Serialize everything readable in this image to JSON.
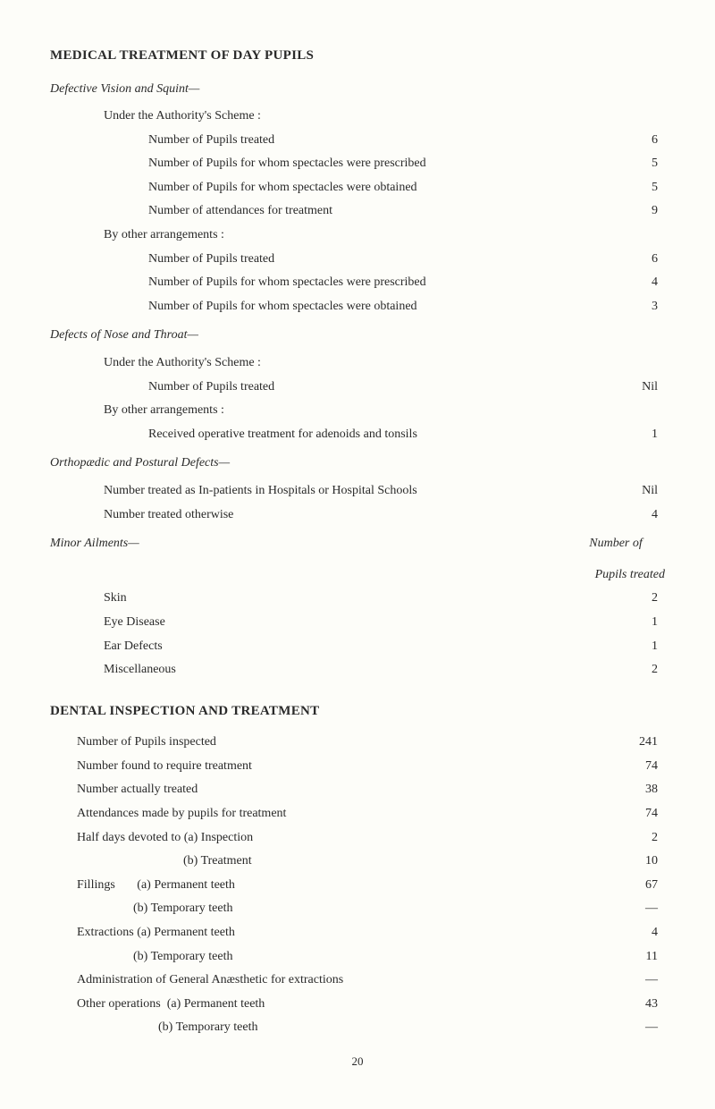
{
  "title_medical": "MEDICAL TREATMENT OF DAY PUPILS",
  "defective_vision": {
    "heading": "Defective Vision and Squint—",
    "under_scheme": "Under the Authority's Scheme :",
    "rows_scheme": [
      {
        "label": "Number of Pupils treated",
        "value": "6"
      },
      {
        "label": "Number of Pupils for whom spectacles were prescribed",
        "value": "5"
      },
      {
        "label": "Number of Pupils for whom spectacles were obtained",
        "value": "5"
      },
      {
        "label": "Number of attendances for treatment",
        "value": "9"
      }
    ],
    "by_other": "By other arrangements :",
    "rows_other": [
      {
        "label": "Number of Pupils treated",
        "value": "6"
      },
      {
        "label": "Number of Pupils for whom spectacles were prescribed",
        "value": "4"
      },
      {
        "label": "Number of Pupils for whom spectacles were obtained",
        "value": "3"
      }
    ]
  },
  "defects_nose": {
    "heading": "Defects of Nose and Throat—",
    "under_scheme": "Under the Authority's Scheme :",
    "row_scheme": {
      "label": "Number of Pupils treated",
      "value": "Nil"
    },
    "by_other": "By other arrangements :",
    "row_other": {
      "label": "Received operative treatment for adenoids and tonsils",
      "value": "1"
    }
  },
  "orthopaedic": {
    "heading": "Orthopædic and Postural Defects—",
    "rows": [
      {
        "label": "Number treated as In-patients in Hospitals or Hospital Schools",
        "value": "Nil"
      },
      {
        "label": "Number treated otherwise",
        "value": "4"
      }
    ]
  },
  "minor": {
    "heading": "Minor Ailments—",
    "note1": "Number of",
    "note2": "Pupils treated",
    "rows": [
      {
        "label": "Skin",
        "value": "2"
      },
      {
        "label": "Eye Disease",
        "value": "1"
      },
      {
        "label": "Ear Defects",
        "value": "1"
      },
      {
        "label": "Miscellaneous",
        "value": "2"
      }
    ]
  },
  "title_dental": "DENTAL INSPECTION AND TREATMENT",
  "dental": {
    "rows": [
      {
        "label": "Number of Pupils inspected",
        "value": "241",
        "indent": "indent05"
      },
      {
        "label": "Number found to require treatment",
        "value": "74",
        "indent": "indent05"
      },
      {
        "label": "Number actually treated",
        "value": "38",
        "indent": "indent05"
      },
      {
        "label": "Attendances made by pupils for treatment",
        "value": "74",
        "indent": "indent05"
      },
      {
        "label": "Half days devoted to (a) Inspection",
        "value": "2",
        "indent": "indent05"
      },
      {
        "label": "                                  (b) Treatment",
        "value": "10",
        "indent": "indent05"
      },
      {
        "label": "Fillings       (a) Permanent teeth",
        "value": "67",
        "indent": "indent05"
      },
      {
        "label": "                  (b) Temporary teeth",
        "value": "—",
        "indent": "indent05"
      },
      {
        "label": "Extractions (a) Permanent teeth",
        "value": "4",
        "indent": "indent05"
      },
      {
        "label": "                  (b) Temporary teeth",
        "value": "11",
        "indent": "indent05"
      },
      {
        "label": "Administration of General Anæsthetic for extractions",
        "value": "—",
        "indent": "indent05"
      },
      {
        "label": "Other operations  (a) Permanent teeth",
        "value": "43",
        "indent": "indent05"
      },
      {
        "label": "                          (b) Temporary teeth",
        "value": "—",
        "indent": "indent05"
      }
    ]
  },
  "page_number": "20"
}
